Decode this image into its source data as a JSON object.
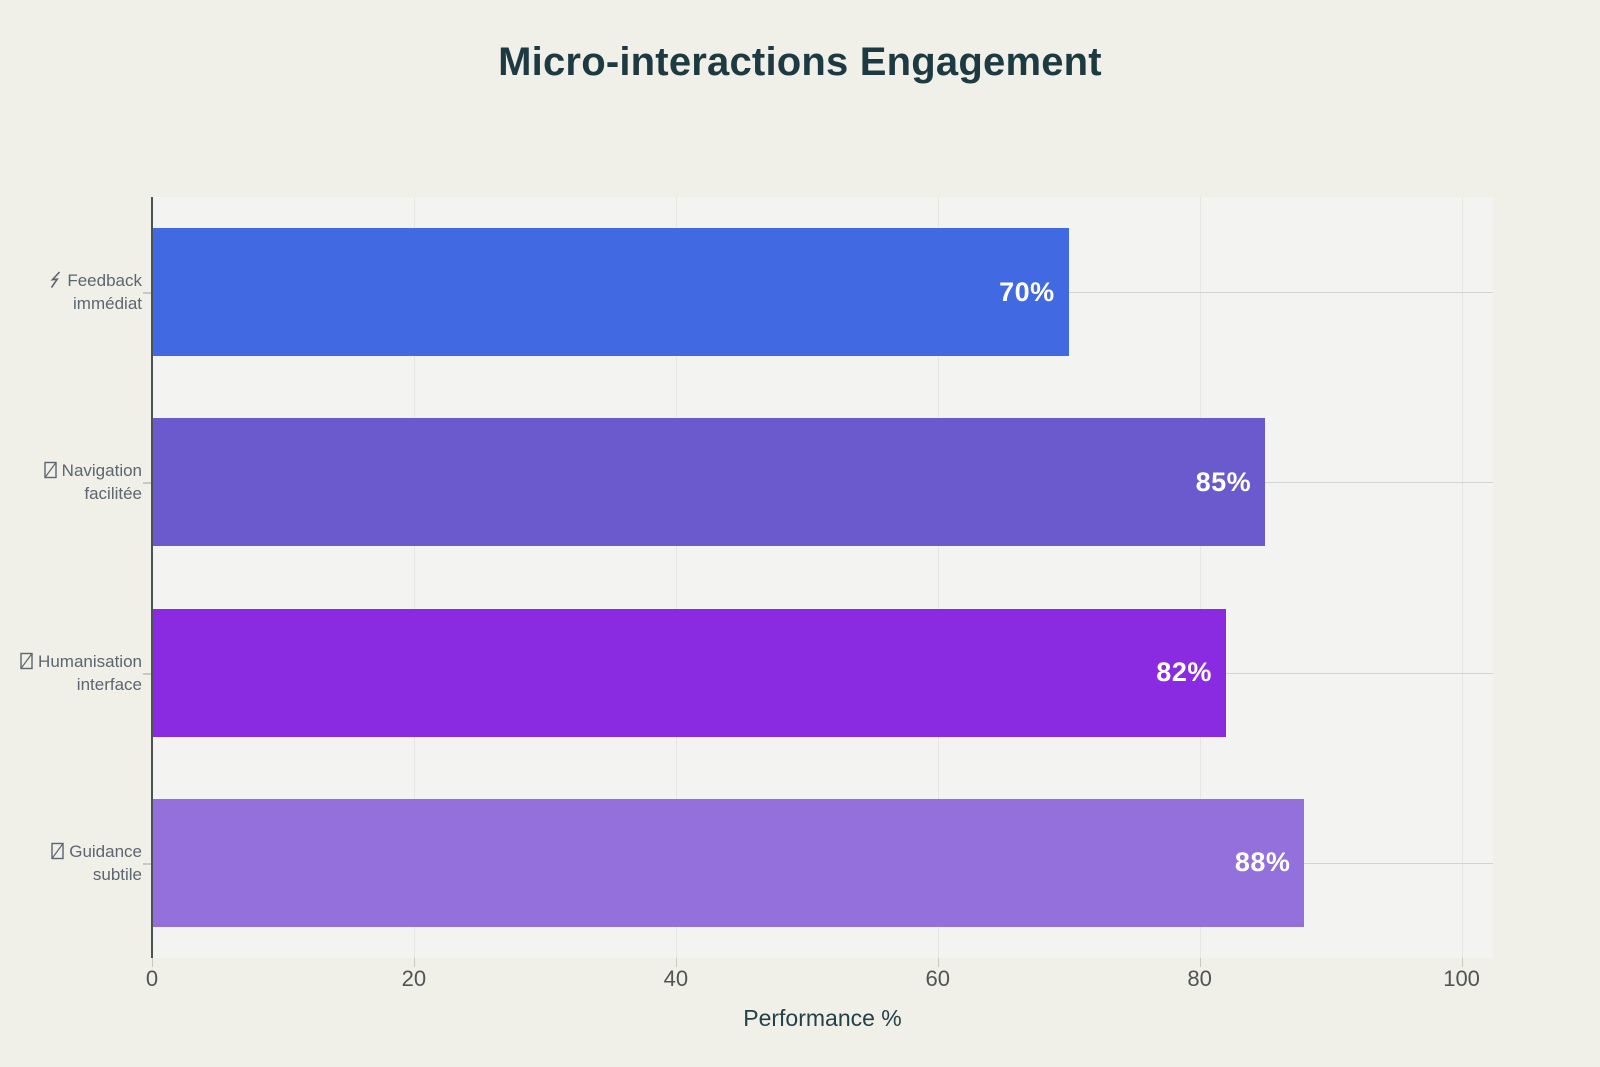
{
  "chart_data": {
    "type": "bar",
    "orientation": "horizontal",
    "title": "Micro-interactions Engagement",
    "xlabel": "Performance %",
    "ylabel": "",
    "categories": [
      "Feedback immédiat",
      "Navigation facilitée",
      "Humanisation interface",
      "Guidance subtile"
    ],
    "category_label_lines": [
      [
        "Feedback",
        "immédiat"
      ],
      [
        "Navigation",
        "facilitée"
      ],
      [
        "Humanisation",
        "interface"
      ],
      [
        "Guidance",
        "subtile"
      ]
    ],
    "category_icons": [
      "lightning-icon",
      "missing-glyph-icon",
      "missing-glyph-icon",
      "missing-glyph-icon"
    ],
    "values": [
      70,
      85,
      82,
      88
    ],
    "value_labels": [
      "70%",
      "85%",
      "82%",
      "88%"
    ],
    "bar_colors": [
      "#4169e1",
      "#6a5acd",
      "#8a2be2",
      "#9370db"
    ],
    "xlim": [
      0,
      102.4
    ],
    "xticks": [
      0,
      20,
      40,
      60,
      80,
      100
    ],
    "grid": true,
    "legend_position": "none"
  },
  "colors": {
    "page_bg": "#f0efe8",
    "plot_bg": "#f3f3f1",
    "title_color": "#1d3a42",
    "axis_title_color": "#24414a",
    "tick_label_color": "#4f5556",
    "category_label_color": "#5c6670",
    "vgrid_color": "#e6e6e2",
    "hgrid_color": "#d3d3d0",
    "axis_line_color": "#4b5254",
    "tick_mark_color": "#c9c9c3",
    "value_label_color": "#ffffff"
  }
}
